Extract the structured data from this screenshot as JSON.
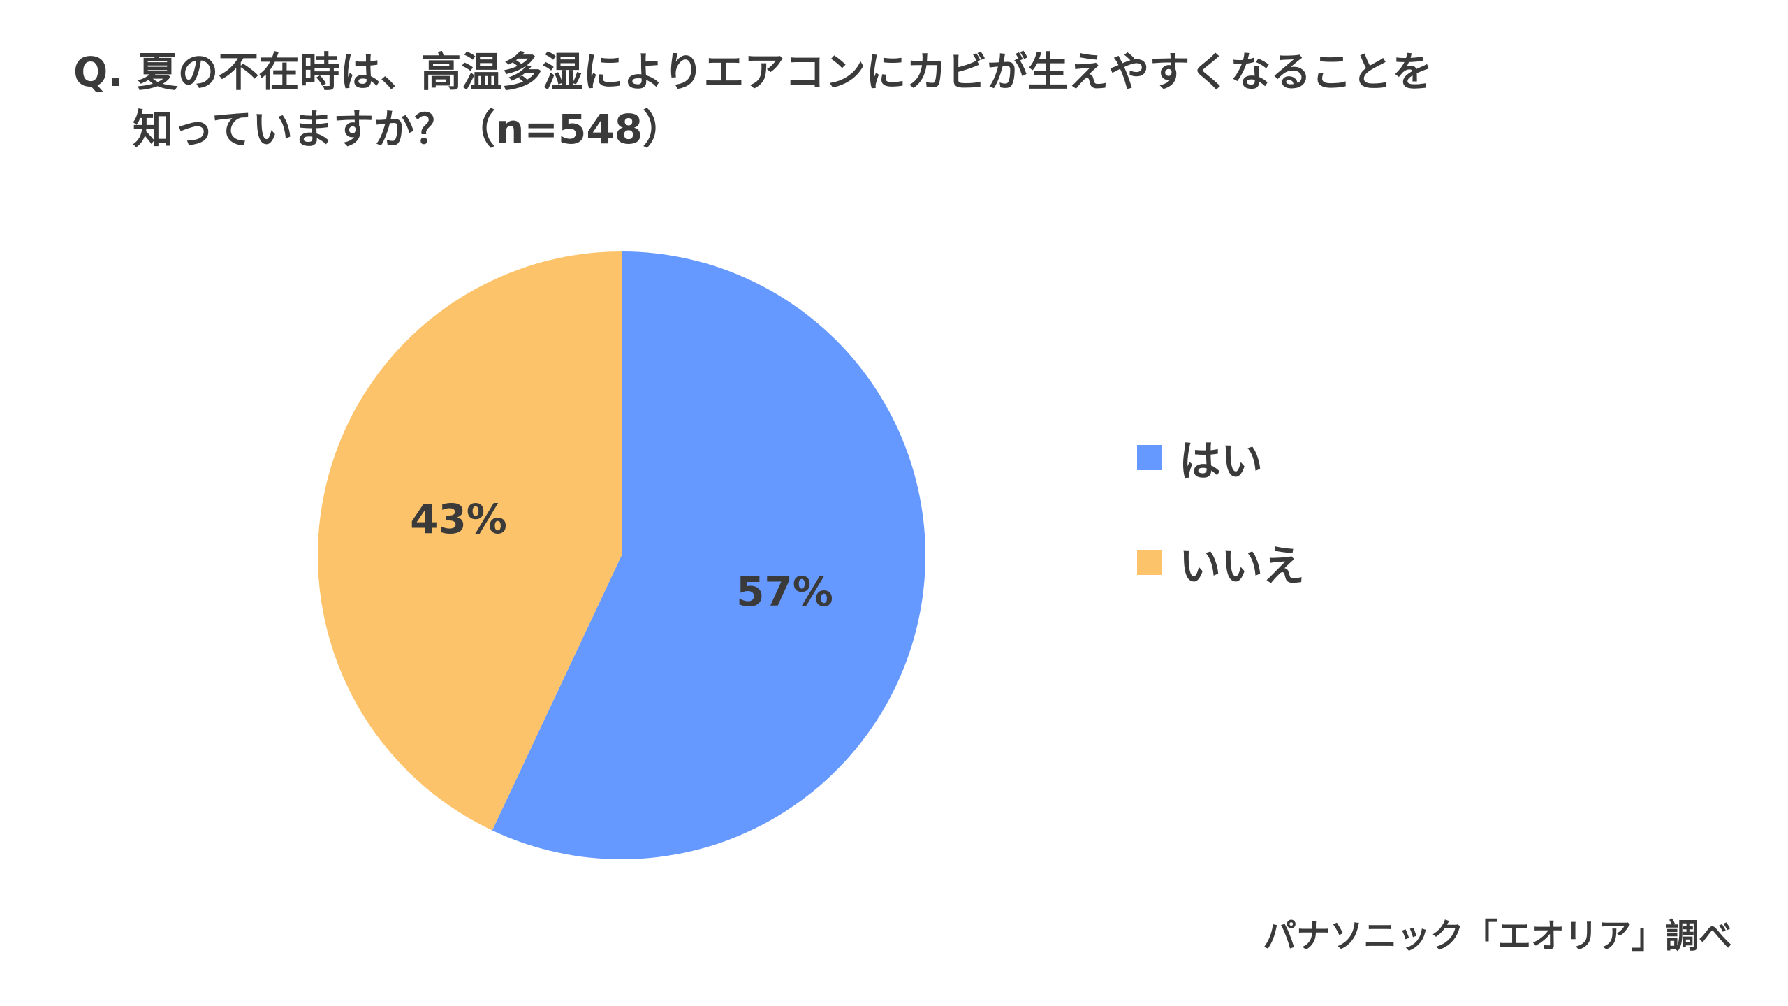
{
  "title": {
    "line1": "Q. 夏の不在時は、高温多湿によりエアコンにカビが生えやすくなることを",
    "line2": "知っていますか？（n=548）"
  },
  "source": "パナソニック「エオリア」調べ",
  "colors": {
    "yes": "#6699FF",
    "no": "#FDC36A",
    "text": "#3a3a3a"
  },
  "chart_data": {
    "type": "pie",
    "categories": [
      "はい",
      "いいえ"
    ],
    "values": [
      57,
      43
    ],
    "value_labels": [
      "57%",
      "43%"
    ],
    "colors": [
      "#6699FF",
      "#FDC36A"
    ],
    "legend": [
      "はい",
      "いいえ"
    ],
    "legend_position": "right",
    "start_angle": "top, clockwise"
  }
}
